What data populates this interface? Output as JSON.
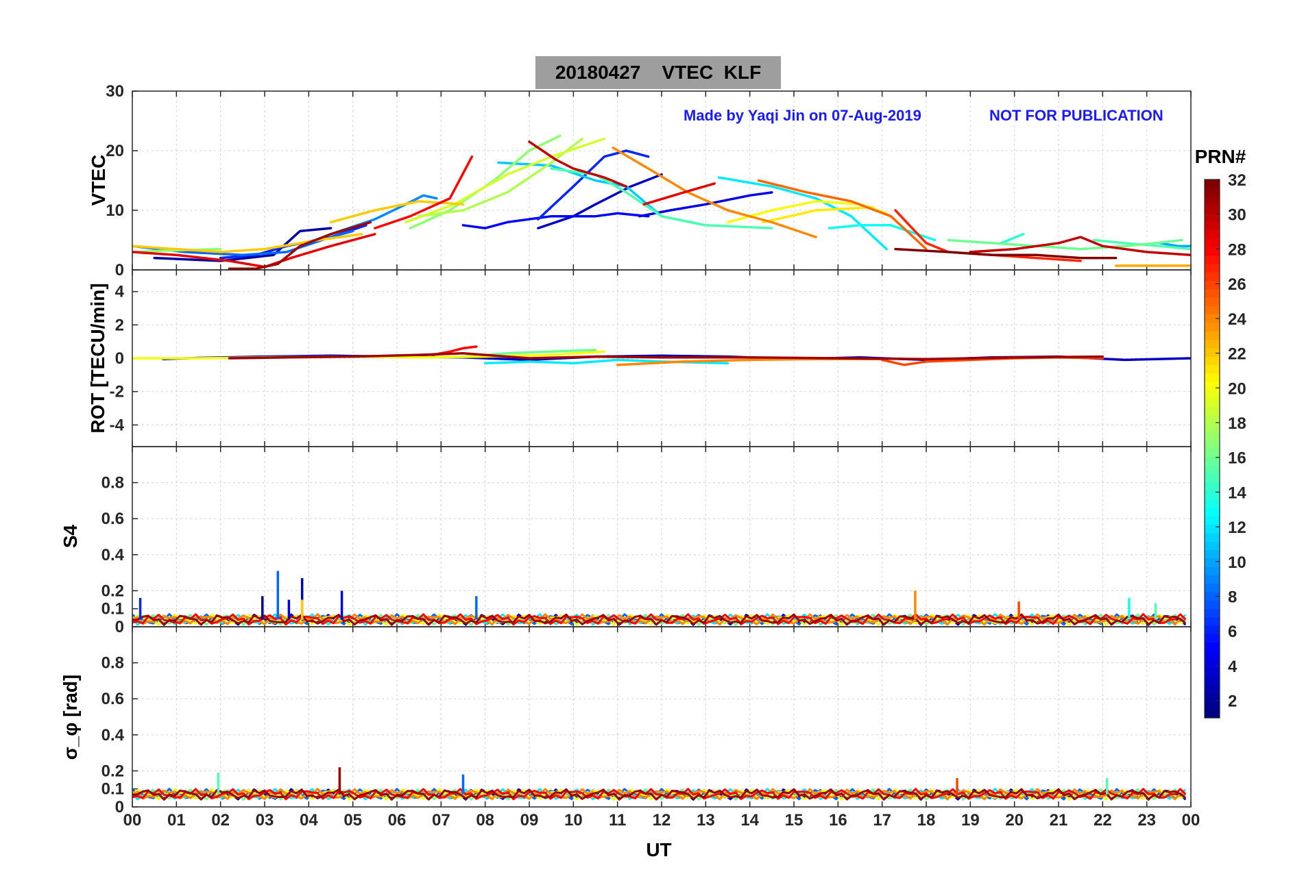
{
  "title": "20180427    VTEC  KLF",
  "credit": "Made by Yaqi Jin on 07-Aug-2019",
  "disclaimer": "NOT FOR PUBLICATION",
  "chart_data": {
    "type": "line",
    "xlabel": "UT",
    "x_ticks": [
      "00",
      "01",
      "02",
      "03",
      "04",
      "05",
      "06",
      "07",
      "08",
      "09",
      "10",
      "11",
      "12",
      "13",
      "14",
      "15",
      "16",
      "17",
      "18",
      "19",
      "20",
      "21",
      "22",
      "23",
      "00"
    ],
    "xlim": [
      0,
      24
    ],
    "colorbar": {
      "label": "PRN#",
      "range": [
        1,
        32
      ],
      "ticks": [
        "2",
        "4",
        "6",
        "8",
        "10",
        "12",
        "14",
        "16",
        "18",
        "20",
        "22",
        "24",
        "26",
        "28",
        "30",
        "32"
      ]
    },
    "panels": [
      {
        "name": "vtec",
        "ylabel": "VTEC",
        "ylim": [
          0,
          30
        ],
        "y_ticks": [
          "0",
          "10",
          "20",
          "30"
        ],
        "series": [
          {
            "prn": 2,
            "x": [
              0.5,
              2,
              3.2,
              3.8,
              4.5
            ],
            "y": [
              2,
              1.5,
              2.5,
              6.5,
              7
            ]
          },
          {
            "prn": 3,
            "x": [
              9.2,
              10,
              10.5,
              11.3,
              12
            ],
            "y": [
              7,
              9,
              11,
              14,
              16
            ]
          },
          {
            "prn": 4,
            "x": [
              11.5,
              12.2,
              13,
              14,
              14.5
            ],
            "y": [
              9,
              10,
              11,
              12.5,
              13
            ]
          },
          {
            "prn": 5,
            "x": [
              7.5,
              8,
              8.5,
              9.5,
              10.5,
              11,
              11.7
            ],
            "y": [
              7.5,
              7,
              8,
              9,
              9,
              9.5,
              9
            ]
          },
          {
            "prn": 6,
            "x": [
              9.2,
              10,
              10.7,
              11.2,
              11.7
            ],
            "y": [
              8.5,
              14,
              19,
              20,
              19
            ]
          },
          {
            "prn": 6,
            "x": [
              2,
              2.8,
              3.5,
              4.5,
              5.3
            ],
            "y": [
              2,
              2.5,
              4,
              5.5,
              7.5
            ]
          },
          {
            "prn": 8,
            "x": [
              0,
              1.2,
              2.5,
              3.5,
              4.5,
              5
            ],
            "y": [
              4,
              3,
              2.5,
              3,
              5.5,
              6.5
            ]
          },
          {
            "prn": 9,
            "x": [
              4.5,
              5.5,
              6.2,
              6.6,
              6.9
            ],
            "y": [
              6,
              8.5,
              11,
              12.5,
              12
            ]
          },
          {
            "prn": 10,
            "x": [
              23.3,
              23.7,
              24
            ],
            "y": [
              4.5,
              4,
              4
            ]
          },
          {
            "prn": 11,
            "x": [
              8.3,
              9.5,
              10.5,
              11.2,
              12,
              13
            ],
            "y": [
              18,
              17.5,
              15,
              14,
              9,
              7.5
            ]
          },
          {
            "prn": 12,
            "x": [
              13.3,
              14.5,
              15.5,
              16.3,
              17.1
            ],
            "y": [
              15.5,
              14,
              12,
              9,
              3.5
            ]
          },
          {
            "prn": 13,
            "x": [
              15.8,
              16.5,
              17.2,
              18.2
            ],
            "y": [
              7,
              7.5,
              7.5,
              5
            ]
          },
          {
            "prn": 14,
            "x": [
              19.7,
              20.2
            ],
            "y": [
              4.5,
              6
            ]
          },
          {
            "prn": 15,
            "x": [
              9.5,
              10.5,
              11.2,
              12,
              13,
              14.5
            ],
            "y": [
              17,
              16,
              13,
              9,
              7.5,
              7
            ]
          },
          {
            "prn": 15,
            "x": [
              21.8,
              22.5,
              23.3,
              24
            ],
            "y": [
              5,
              4.5,
              4,
              3.5
            ]
          },
          {
            "prn": 16,
            "x": [
              18.5,
              19.5,
              20.5,
              21.5,
              22.5,
              23.2,
              23.8
            ],
            "y": [
              5,
              4.5,
              4,
              3.5,
              4,
              4.5,
              5
            ]
          },
          {
            "prn": 17,
            "x": [
              0,
              0.6,
              1.1,
              1.6,
              2
            ],
            "y": [
              3,
              3.2,
              3.3,
              3.4,
              3.5
            ]
          },
          {
            "prn": 17,
            "x": [
              6.3,
              7.2,
              8.2,
              9,
              9.7
            ],
            "y": [
              7,
              10,
              15,
              20,
              22.5
            ]
          },
          {
            "prn": 18,
            "x": [
              6.5,
              7.5,
              8.5,
              9.5,
              10.2
            ],
            "y": [
              9,
              10,
              13,
              18,
              22
            ]
          },
          {
            "prn": 19,
            "x": [
              6.2,
              7.3,
              8.5,
              9.5,
              10.5,
              10.7
            ],
            "y": [
              8,
              11,
              16,
              19,
              21.5,
              22
            ]
          },
          {
            "prn": 20,
            "x": [
              13.5,
              14.5,
              15.5,
              16.5,
              17.1
            ],
            "y": [
              8,
              10,
              11.5,
              11,
              9.5
            ]
          },
          {
            "prn": 21,
            "x": [
              14.3,
              15.5,
              16.8
            ],
            "y": [
              8,
              10,
              10.5
            ]
          },
          {
            "prn": 22,
            "x": [
              0,
              1,
              2,
              3,
              4.2,
              5.2
            ],
            "y": [
              4,
              3.5,
              3,
              3.5,
              5,
              6
            ]
          },
          {
            "prn": 22,
            "x": [
              4.5,
              5.5,
              6.5,
              7.5
            ],
            "y": [
              8,
              10,
              11.5,
              11
            ]
          },
          {
            "prn": 23,
            "x": [
              22.3,
              23,
              24
            ],
            "y": [
              0.7,
              0.7,
              0.7
            ]
          },
          {
            "prn": 24,
            "x": [
              10.9,
              11.7,
              12.6,
              13.5,
              14.5,
              15.5
            ],
            "y": [
              20.5,
              17,
              13,
              10,
              8,
              5.5
            ]
          },
          {
            "prn": 25,
            "x": [
              14.2,
              15.3,
              16.3,
              17.2,
              18
            ],
            "y": [
              15,
              13,
              11.5,
              9,
              3.5
            ]
          },
          {
            "prn": 27,
            "x": [
              17.3,
              18,
              18.5,
              19.5,
              20.5,
              21.5
            ],
            "y": [
              10,
              4.5,
              3,
              2.5,
              2,
              1.5
            ]
          },
          {
            "prn": 28,
            "x": [
              5.5,
              6.3,
              7.2,
              7.7
            ],
            "y": [
              7,
              9,
              12,
              19
            ]
          },
          {
            "prn": 29,
            "x": [
              0,
              1,
              2.2,
              3,
              3.6,
              4.5,
              5.5
            ],
            "y": [
              3,
              2.5,
              1.5,
              0.5,
              2,
              4,
              6
            ]
          },
          {
            "prn": 29,
            "x": [
              11.6,
              12.5,
              13.2
            ],
            "y": [
              11,
              13,
              14.5
            ]
          },
          {
            "prn": 30,
            "x": [
              9,
              9.6,
              10,
              10.7,
              11.2
            ],
            "y": [
              21.5,
              18.5,
              17,
              15.5,
              14
            ]
          },
          {
            "prn": 30,
            "x": [
              19,
              20,
              21,
              21.5,
              22,
              23,
              24
            ],
            "y": [
              3,
              3.5,
              4.5,
              5.5,
              4,
              3,
              2.5
            ]
          },
          {
            "prn": 31,
            "x": [
              2.2,
              2.8,
              3.3,
              3.8,
              4.5,
              5.4
            ],
            "y": [
              0.2,
              0.2,
              1,
              4,
              6,
              8
            ]
          },
          {
            "prn": 32,
            "x": [
              17.3,
              18.5,
              19.5,
              20.5,
              21.5,
              22.3
            ],
            "y": [
              3.5,
              3,
              2.5,
              2.5,
              2,
              2
            ]
          }
        ]
      },
      {
        "name": "rot",
        "ylabel": "ROT [TECU/min]",
        "ylim": [
          -5.3,
          5.3
        ],
        "y_ticks": [
          "-4",
          "-2",
          "0",
          "2",
          "4"
        ],
        "series": [
          {
            "prn": 3,
            "x": [
              0.7,
              1.5,
              3,
              4.5,
              6,
              7.5,
              9,
              10.5,
              12,
              13.5,
              15,
              16.5,
              18,
              19.5,
              21,
              22.5,
              24
            ],
            "y": [
              -0.05,
              0.02,
              0.1,
              0.15,
              0.1,
              0.05,
              -0.1,
              0.1,
              0.15,
              0.1,
              -0.05,
              0.05,
              -0.1,
              0.05,
              0.1,
              -0.1,
              0
            ]
          },
          {
            "prn": 12,
            "x": [
              8,
              9,
              10,
              11,
              12,
              13.5
            ],
            "y": [
              -0.3,
              -0.2,
              -0.3,
              -0.1,
              -0.2,
              -0.3
            ]
          },
          {
            "prn": 16,
            "x": [
              7.5,
              8.5,
              9.5,
              10.5
            ],
            "y": [
              0.1,
              0.3,
              0.4,
              0.5
            ]
          },
          {
            "prn": 20,
            "x": [
              0,
              1.5,
              3,
              5,
              6.5,
              8,
              9.5,
              10.7
            ],
            "y": [
              0,
              0,
              0.05,
              0.1,
              0.05,
              0.1,
              0.2,
              0.4
            ]
          },
          {
            "prn": 24,
            "x": [
              11,
              12.5,
              14,
              15.5,
              17
            ],
            "y": [
              -0.4,
              -0.2,
              -0.1,
              -0.05,
              -0.05
            ]
          },
          {
            "prn": 26,
            "x": [
              17,
              17.5,
              18,
              19,
              20,
              21,
              22
            ],
            "y": [
              -0.1,
              -0.4,
              -0.2,
              -0.1,
              0,
              0.05,
              0
            ]
          },
          {
            "prn": 28,
            "x": [
              6.8,
              7.2,
              7.5,
              7.8
            ],
            "y": [
              0.2,
              0.4,
              0.6,
              0.7
            ]
          },
          {
            "prn": 31,
            "x": [
              2.2,
              3.5,
              5,
              6.5,
              7.5,
              9,
              10.5,
              12,
              14,
              16,
              18,
              20,
              22
            ],
            "y": [
              0,
              0.05,
              0.1,
              0.2,
              0.3,
              0,
              0.1,
              0.05,
              0.05,
              0,
              -0.05,
              0.05,
              0.1
            ]
          }
        ]
      },
      {
        "name": "s4",
        "ylabel": "S4",
        "ylim": [
          0,
          1
        ],
        "y_ticks": [
          "0",
          "0.1",
          "0.2",
          "0.4",
          "0.6",
          "0.8"
        ],
        "spikes": [
          {
            "prn": 6,
            "x": 0.18,
            "y": 0.16
          },
          {
            "prn": 2,
            "x": 2.95,
            "y": 0.17
          },
          {
            "prn": 8,
            "x": 3.3,
            "y": 0.31
          },
          {
            "prn": 4,
            "x": 3.55,
            "y": 0.15
          },
          {
            "prn": 3,
            "x": 3.85,
            "y": 0.27
          },
          {
            "prn": 22,
            "x": 3.85,
            "y": 0.15
          },
          {
            "prn": 4,
            "x": 4.75,
            "y": 0.2
          },
          {
            "prn": 8,
            "x": 7.8,
            "y": 0.17
          },
          {
            "prn": 24,
            "x": 17.75,
            "y": 0.2
          },
          {
            "prn": 26,
            "x": 20.1,
            "y": 0.14
          },
          {
            "prn": 13,
            "x": 22.6,
            "y": 0.16
          },
          {
            "prn": 15,
            "x": 23.2,
            "y": 0.13
          }
        ]
      },
      {
        "name": "sigma_phi",
        "ylabel": "σ_φ [rad]",
        "ylim": [
          0,
          1
        ],
        "y_ticks": [
          "0",
          "0.1",
          "0.2",
          "0.4",
          "0.6",
          "0.8"
        ],
        "spikes": [
          {
            "prn": 15,
            "x": 1.95,
            "y": 0.19
          },
          {
            "prn": 31,
            "x": 4.7,
            "y": 0.22
          },
          {
            "prn": 8,
            "x": 7.5,
            "y": 0.18
          },
          {
            "prn": 26,
            "x": 18.7,
            "y": 0.16
          },
          {
            "prn": 15,
            "x": 22.1,
            "y": 0.16
          }
        ]
      }
    ]
  }
}
